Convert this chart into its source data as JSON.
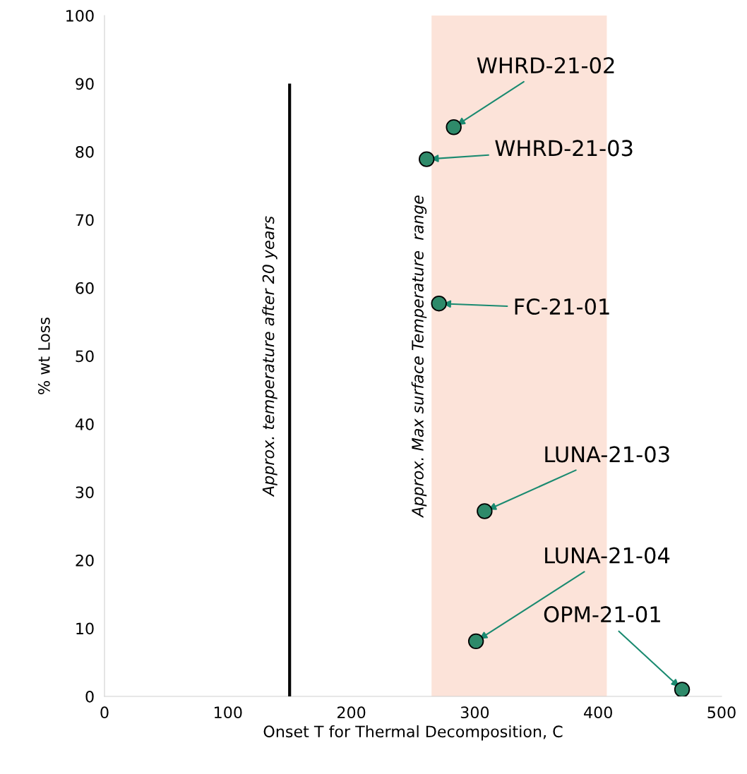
{
  "chart_data": {
    "type": "scatter",
    "xlabel": "Onset T for Thermal Decomposition, C",
    "ylabel": "% wt Loss",
    "xlim": [
      0,
      500
    ],
    "xticks": [
      0,
      100,
      200,
      300,
      400,
      500
    ],
    "ylim": [
      0,
      100
    ],
    "yticks": [
      0,
      10,
      20,
      30,
      40,
      50,
      60,
      70,
      80,
      90,
      100
    ],
    "grid": false,
    "series": [
      {
        "marker": "circle",
        "color": "#2e8a6a",
        "x": [
          283,
          261,
          271,
          308,
          301,
          468
        ],
        "values": [
          83.6,
          78.9,
          57.7,
          27.2,
          8.1,
          1.0
        ]
      },
      {
        "type": "line",
        "name": "Approx. temperature after 20 years",
        "color": "#000000",
        "x": [
          150,
          150
        ],
        "values": [
          0,
          90
        ]
      }
    ],
    "bands": [
      {
        "axis": "x",
        "from": 265,
        "to": 407,
        "label": "Approx. Max surface Temperature  range",
        "color": "#fce3d9"
      }
    ],
    "annotations": [
      {
        "text": "WHRD-21-02",
        "x": 283,
        "y": 83.6
      },
      {
        "text": "WHRD-21-03",
        "x": 261,
        "y": 78.9
      },
      {
        "text": "FC-21-01",
        "x": 271,
        "y": 57.7
      },
      {
        "text": "LUNA-21-03",
        "x": 308,
        "y": 27.2
      },
      {
        "text": "LUNA-21-04",
        "x": 301,
        "y": 8.1
      },
      {
        "text": "OPM-21-01",
        "x": 468,
        "y": 1.0
      }
    ]
  }
}
